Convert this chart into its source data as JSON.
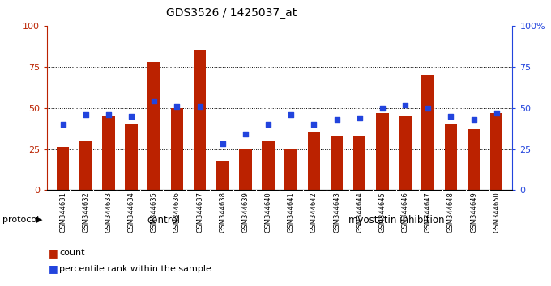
{
  "title": "GDS3526 / 1425037_at",
  "samples": [
    "GSM344631",
    "GSM344632",
    "GSM344633",
    "GSM344634",
    "GSM344635",
    "GSM344636",
    "GSM344637",
    "GSM344638",
    "GSM344639",
    "GSM344640",
    "GSM344641",
    "GSM344642",
    "GSM344643",
    "GSM344644",
    "GSM344645",
    "GSM344646",
    "GSM344647",
    "GSM344648",
    "GSM344649",
    "GSM344650"
  ],
  "bar_values": [
    26,
    30,
    45,
    40,
    78,
    50,
    85,
    18,
    25,
    30,
    25,
    35,
    33,
    33,
    47,
    45,
    70,
    40,
    37,
    47
  ],
  "dot_values": [
    40,
    46,
    46,
    45,
    54,
    51,
    51,
    28,
    34,
    40,
    46,
    40,
    43,
    44,
    50,
    52,
    50,
    45,
    43,
    47
  ],
  "bar_color": "#bb2200",
  "dot_color": "#2244dd",
  "control_count": 10,
  "control_label": "control",
  "treatment_label": "myostatin inhibition",
  "control_bg": "#ccffcc",
  "treatment_bg": "#33dd33",
  "protocol_label": "protocol",
  "legend_bar": "count",
  "legend_dot": "percentile rank within the sample",
  "ylim": [
    0,
    100
  ],
  "yticks": [
    0,
    25,
    50,
    75,
    100
  ],
  "bg_color": "#ffffff",
  "xtick_bg": "#d8d8d8"
}
